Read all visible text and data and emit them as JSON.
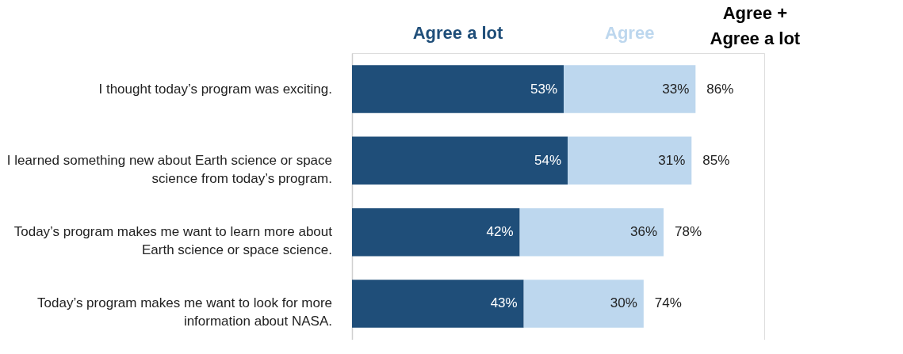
{
  "chart_data": {
    "type": "bar",
    "orientation": "horizontal",
    "stacked": true,
    "legend": "top",
    "categories": [
      "I thought today’s program was exciting.",
      "I learned something new about Earth science or space science from today’s program.",
      "Today’s program makes me want to learn more about Earth science or space science.",
      "Today’s program makes me want to look for more information about NASA."
    ],
    "series": [
      {
        "name": "Agree a lot",
        "color": "#1f4e79",
        "values": [
          53,
          54,
          42,
          43
        ],
        "value_labels": [
          "53%",
          "54%",
          "42%",
          "43%"
        ]
      },
      {
        "name": "Agree",
        "color": "#bdd7ee",
        "values": [
          33,
          31,
          36,
          30
        ],
        "value_labels": [
          "33%",
          "31%",
          "36%",
          "30%"
        ]
      }
    ],
    "totals": [
      "86%",
      "85%",
      "78%",
      "74%"
    ],
    "annotations": [
      "Agree + Agree a lot"
    ]
  }
}
